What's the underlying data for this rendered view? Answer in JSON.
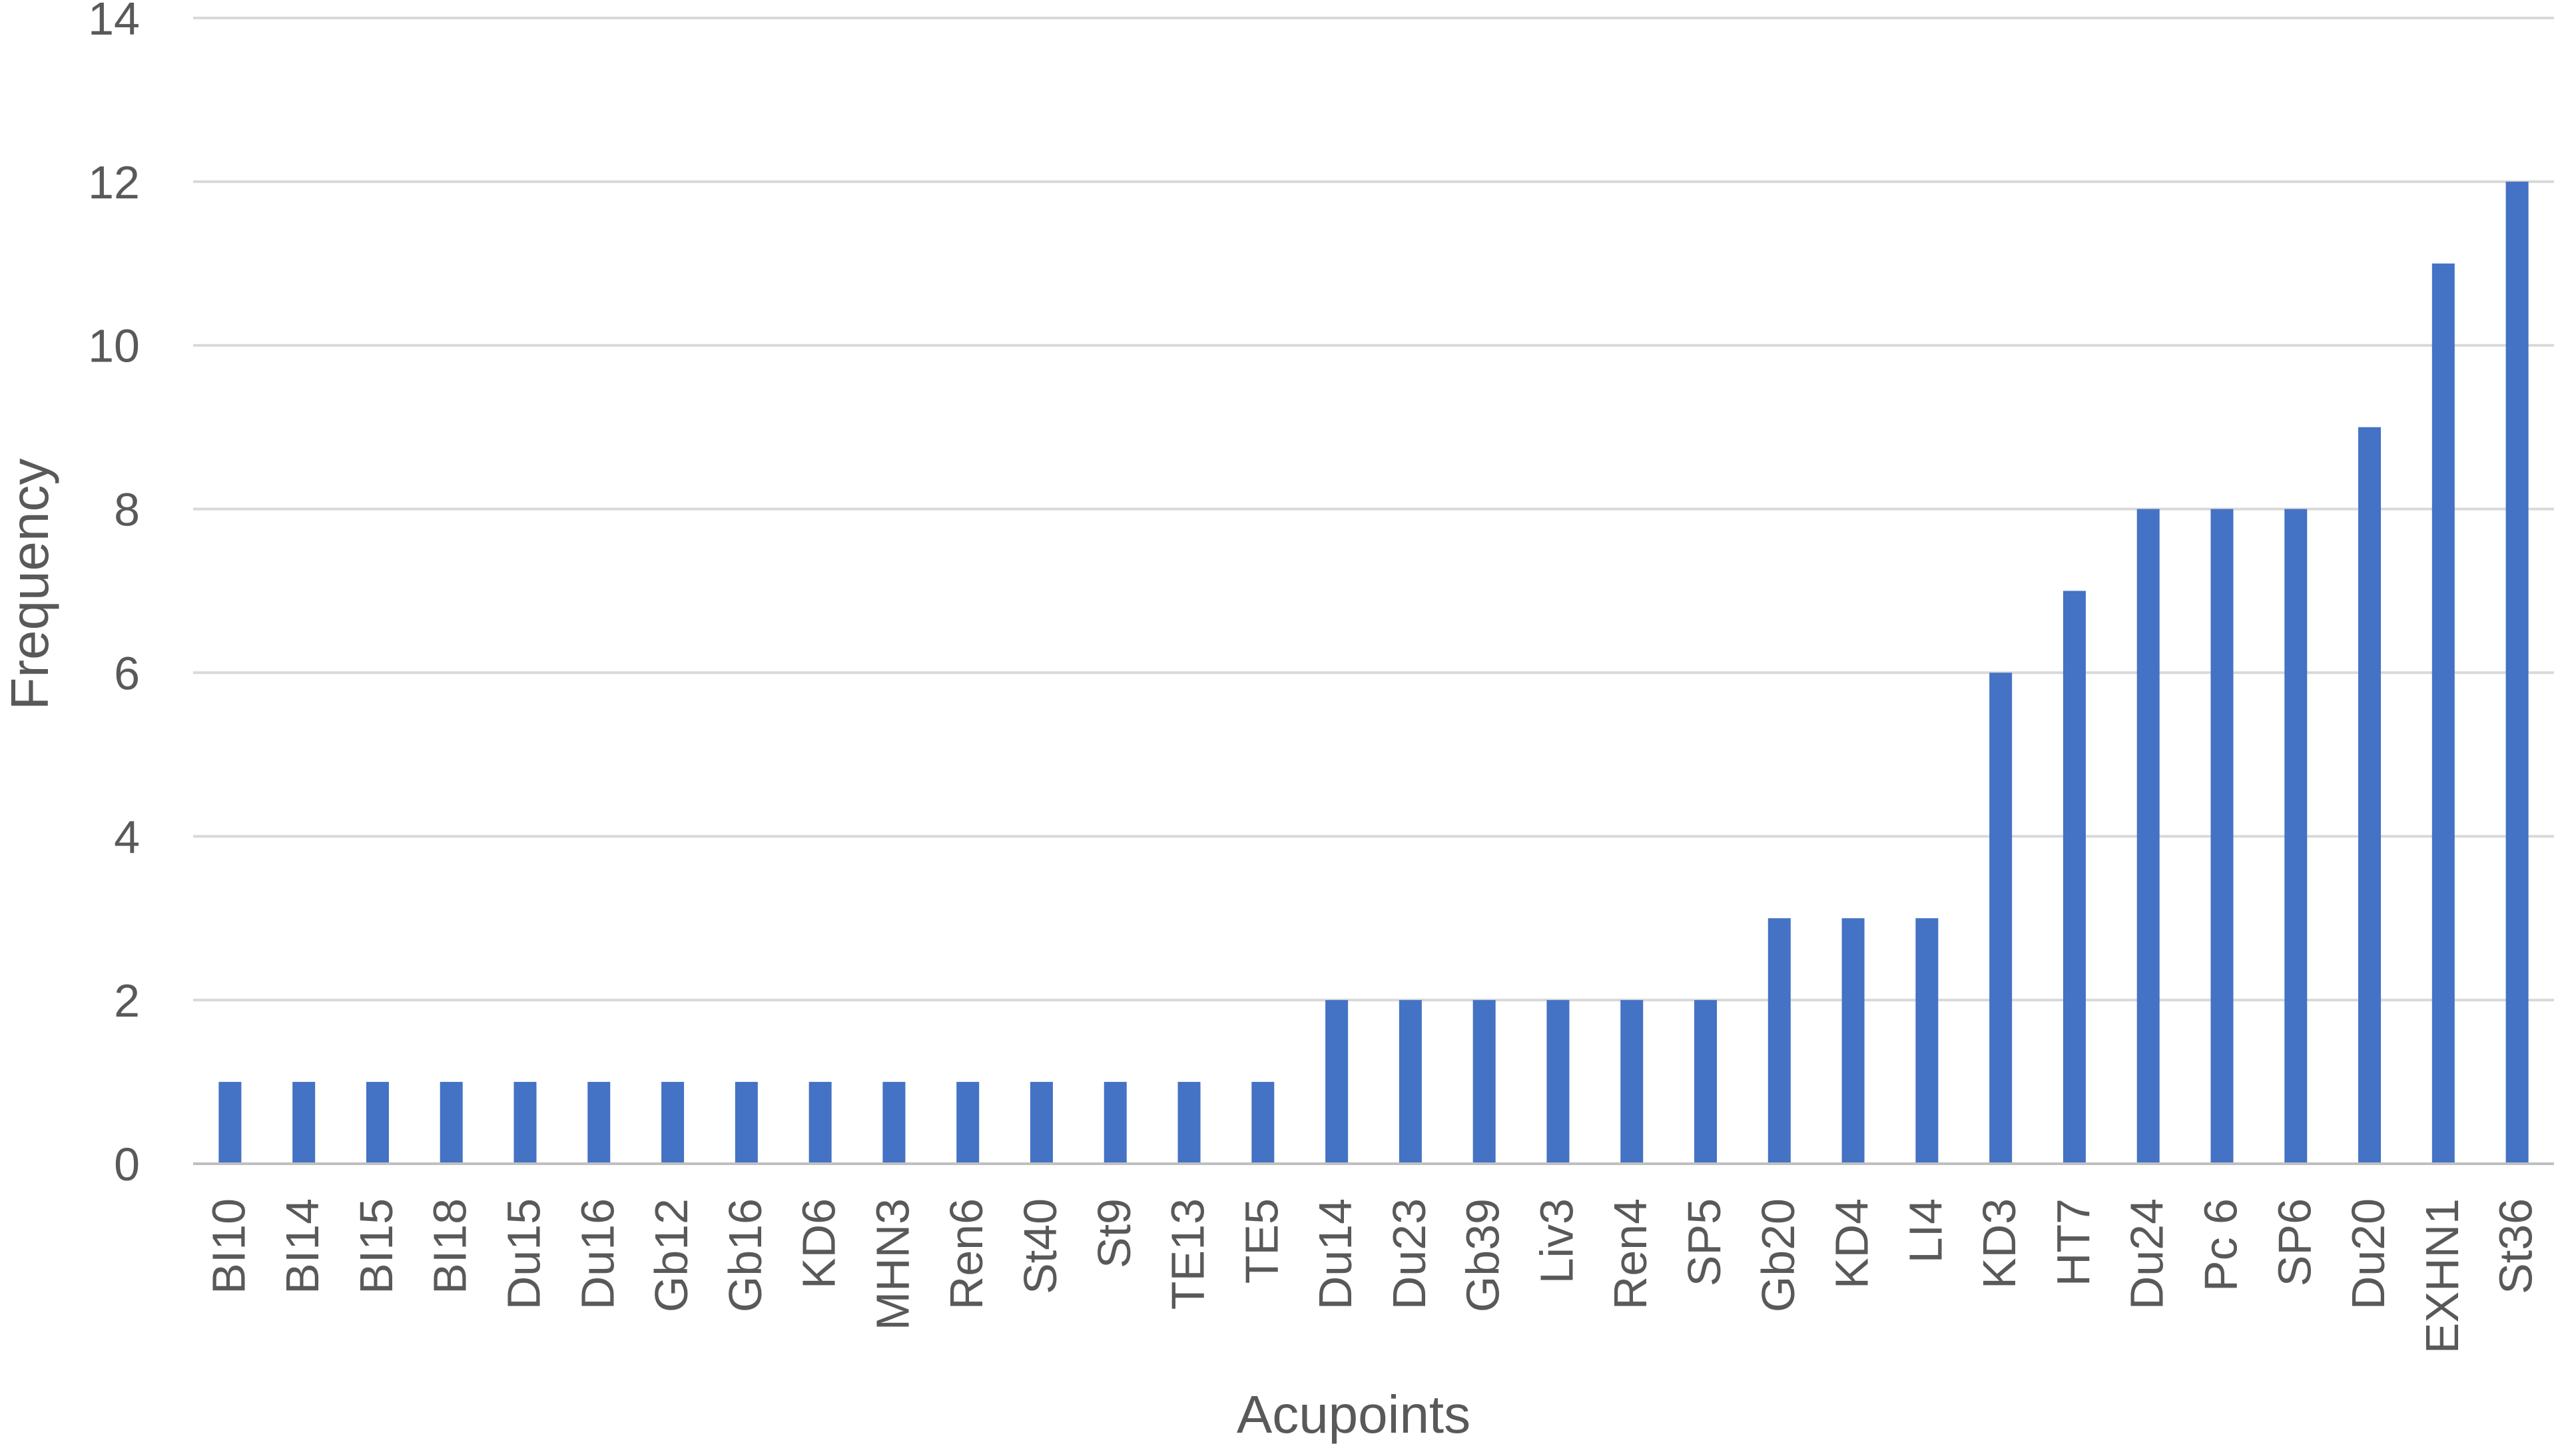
{
  "chart_data": {
    "type": "bar",
    "title": "",
    "xlabel": "Acupoints",
    "ylabel": "Frequency",
    "ylim": [
      0,
      14
    ],
    "yticks": [
      0,
      2,
      4,
      6,
      8,
      10,
      12,
      14
    ],
    "grid": true,
    "legend": "none",
    "colors": {
      "bar": "#4472C4",
      "grid": "#D9D9D9",
      "axis": "#BFBFBF",
      "text": "#595959"
    },
    "categories": [
      "BI10",
      "BI14",
      "BI15",
      "BI18",
      "Du15",
      "Du16",
      "Gb12",
      "Gb16",
      "KD6",
      "MHN3",
      "Ren6",
      "St40",
      "St9",
      "TE13",
      "TE5",
      "Du14",
      "Du23",
      "Gb39",
      "Liv3",
      "Ren4",
      "SP5",
      "Gb20",
      "KD4",
      "LI4",
      "KD3",
      "HT7",
      "Du24",
      "Pc 6",
      "SP6",
      "Du20",
      "EXHN1",
      "St36"
    ],
    "values": [
      1,
      1,
      1,
      1,
      1,
      1,
      1,
      1,
      1,
      1,
      1,
      1,
      1,
      1,
      1,
      2,
      2,
      2,
      2,
      2,
      2,
      3,
      3,
      3,
      6,
      7,
      8,
      8,
      8,
      9,
      11,
      12
    ]
  }
}
